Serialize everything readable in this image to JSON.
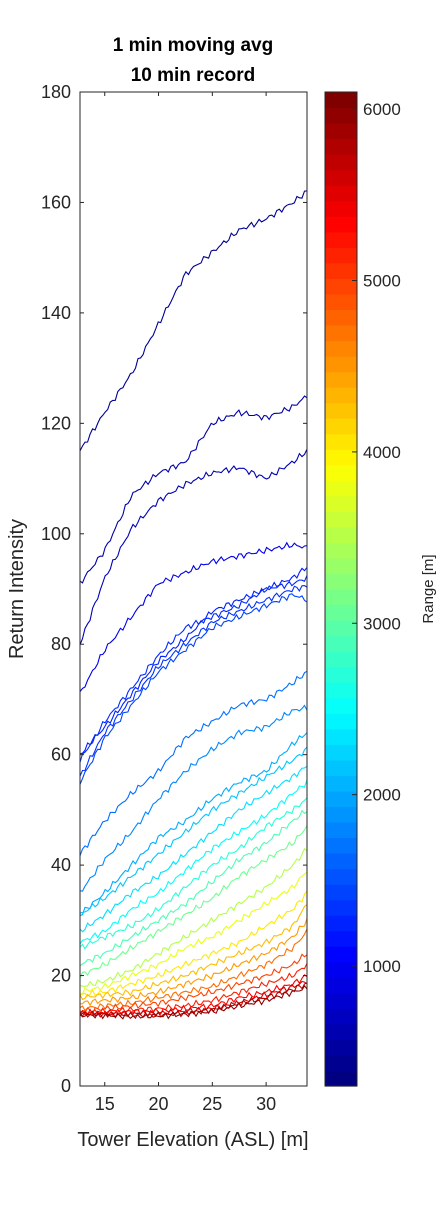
{
  "chart_data": {
    "type": "line",
    "title": [
      "1 min moving avg",
      "10 min record"
    ],
    "xlabel": "Tower Elevation (ASL) [m]",
    "ylabel": "Return Intensity",
    "xlim": [
      12.7,
      33.8
    ],
    "ylim": [
      0,
      180
    ],
    "xticks": [
      15,
      20,
      25,
      30
    ],
    "yticks": [
      0,
      20,
      40,
      60,
      80,
      100,
      120,
      140,
      160,
      180
    ],
    "grid": false,
    "colorbar": {
      "label": "Range [m]",
      "range": [
        300,
        6100
      ],
      "ticks": [
        1000,
        2000,
        3000,
        4000,
        5000,
        6000
      ],
      "colormap": "jet"
    },
    "x": [
      12.7,
      15,
      17.5,
      20,
      22.5,
      25,
      27.5,
      30,
      32.5,
      33.8
    ],
    "series": [
      {
        "range": 400,
        "values": [
          115,
          122,
          129,
          138,
          147,
          151,
          155,
          157,
          160,
          162
        ]
      },
      {
        "range": 500,
        "values": [
          91,
          97,
          107,
          111,
          113,
          120,
          122,
          121,
          123,
          125
        ]
      },
      {
        "range": 600,
        "values": [
          80,
          92,
          101,
          106,
          109,
          111,
          112,
          110,
          113,
          115
        ]
      },
      {
        "range": 900,
        "values": [
          71,
          79,
          85,
          91,
          93,
          95,
          96,
          97,
          98,
          97.5
        ]
      },
      {
        "range": 1200,
        "values": [
          60,
          65,
          71,
          77,
          81,
          86,
          88,
          90,
          92,
          94
        ]
      },
      {
        "range": 1250,
        "values": [
          59,
          66,
          72,
          78,
          83,
          85,
          87,
          90,
          91,
          92
        ]
      },
      {
        "range": 1300,
        "values": [
          56,
          64,
          70,
          76,
          80,
          84,
          86,
          88,
          90,
          90.5
        ]
      },
      {
        "range": 1400,
        "values": [
          55,
          63,
          69,
          75,
          79,
          83,
          85,
          87,
          89,
          88
        ]
      },
      {
        "range": 1650,
        "values": [
          42,
          48,
          53,
          57,
          63,
          66,
          69,
          70,
          73,
          75
        ]
      },
      {
        "range": 1800,
        "values": [
          35,
          41,
          46,
          52,
          57,
          61,
          64,
          65,
          68,
          68.5
        ]
      },
      {
        "range": 2000,
        "values": [
          31,
          35,
          40,
          45,
          48,
          52,
          55,
          57,
          62,
          64
        ]
      },
      {
        "range": 2150,
        "values": [
          31,
          34,
          38,
          42,
          46,
          50,
          53,
          56,
          59,
          61
        ]
      },
      {
        "range": 2300,
        "values": [
          28,
          31,
          35,
          38,
          42,
          46,
          50,
          53,
          56,
          58
        ]
      },
      {
        "range": 2500,
        "values": [
          26,
          28,
          32,
          35,
          39,
          43,
          46,
          49,
          53,
          55
        ]
      },
      {
        "range": 2700,
        "values": [
          25,
          27,
          29,
          32,
          36,
          40,
          43,
          47,
          50,
          52
        ]
      },
      {
        "range": 2900,
        "values": [
          22,
          24,
          27,
          30,
          33,
          37,
          41,
          44,
          48,
          50
        ]
      },
      {
        "range": 3100,
        "values": [
          20,
          22,
          25,
          28,
          31,
          34,
          38,
          41,
          44,
          47
        ]
      },
      {
        "range": 3500,
        "values": [
          18,
          19,
          21,
          24,
          27,
          30,
          33,
          36,
          40,
          43
        ]
      },
      {
        "range": 3800,
        "values": [
          17,
          18,
          20,
          22,
          25,
          27,
          30,
          33,
          36,
          39
        ]
      },
      {
        "range": 4050,
        "values": [
          16.5,
          17,
          18.5,
          20,
          22,
          24,
          26,
          29,
          32,
          35
        ]
      },
      {
        "range": 4300,
        "values": [
          16,
          16.5,
          17,
          18.5,
          20,
          22,
          24,
          26,
          29,
          33
        ]
      },
      {
        "range": 4500,
        "values": [
          15,
          15.5,
          16,
          17,
          18.5,
          20,
          22,
          24,
          27,
          30
        ]
      },
      {
        "range": 4750,
        "values": [
          14,
          14.5,
          15,
          16,
          17,
          18,
          20,
          22,
          25,
          28
        ]
      },
      {
        "range": 5000,
        "values": [
          13.5,
          14,
          14.5,
          15,
          16,
          17,
          18.5,
          20,
          22,
          24
        ]
      },
      {
        "range": 5200,
        "values": [
          13.3,
          13.5,
          13.8,
          14,
          14.5,
          15.5,
          17,
          18.5,
          20,
          22
        ]
      },
      {
        "range": 5400,
        "values": [
          13.2,
          13.3,
          13.5,
          13.5,
          14,
          14.5,
          16,
          17,
          18.5,
          20
        ]
      },
      {
        "range": 5600,
        "values": [
          13,
          13,
          13.2,
          13.2,
          13.5,
          14,
          15,
          16.5,
          18,
          19
        ]
      },
      {
        "range": 5800,
        "values": [
          13,
          13,
          12.8,
          12.8,
          13.2,
          13.8,
          15,
          16,
          17.5,
          18.5
        ]
      },
      {
        "range": 6000,
        "values": [
          12.8,
          12.8,
          12.6,
          12.7,
          13,
          13.5,
          14.5,
          15.5,
          17,
          17.8
        ]
      }
    ]
  }
}
